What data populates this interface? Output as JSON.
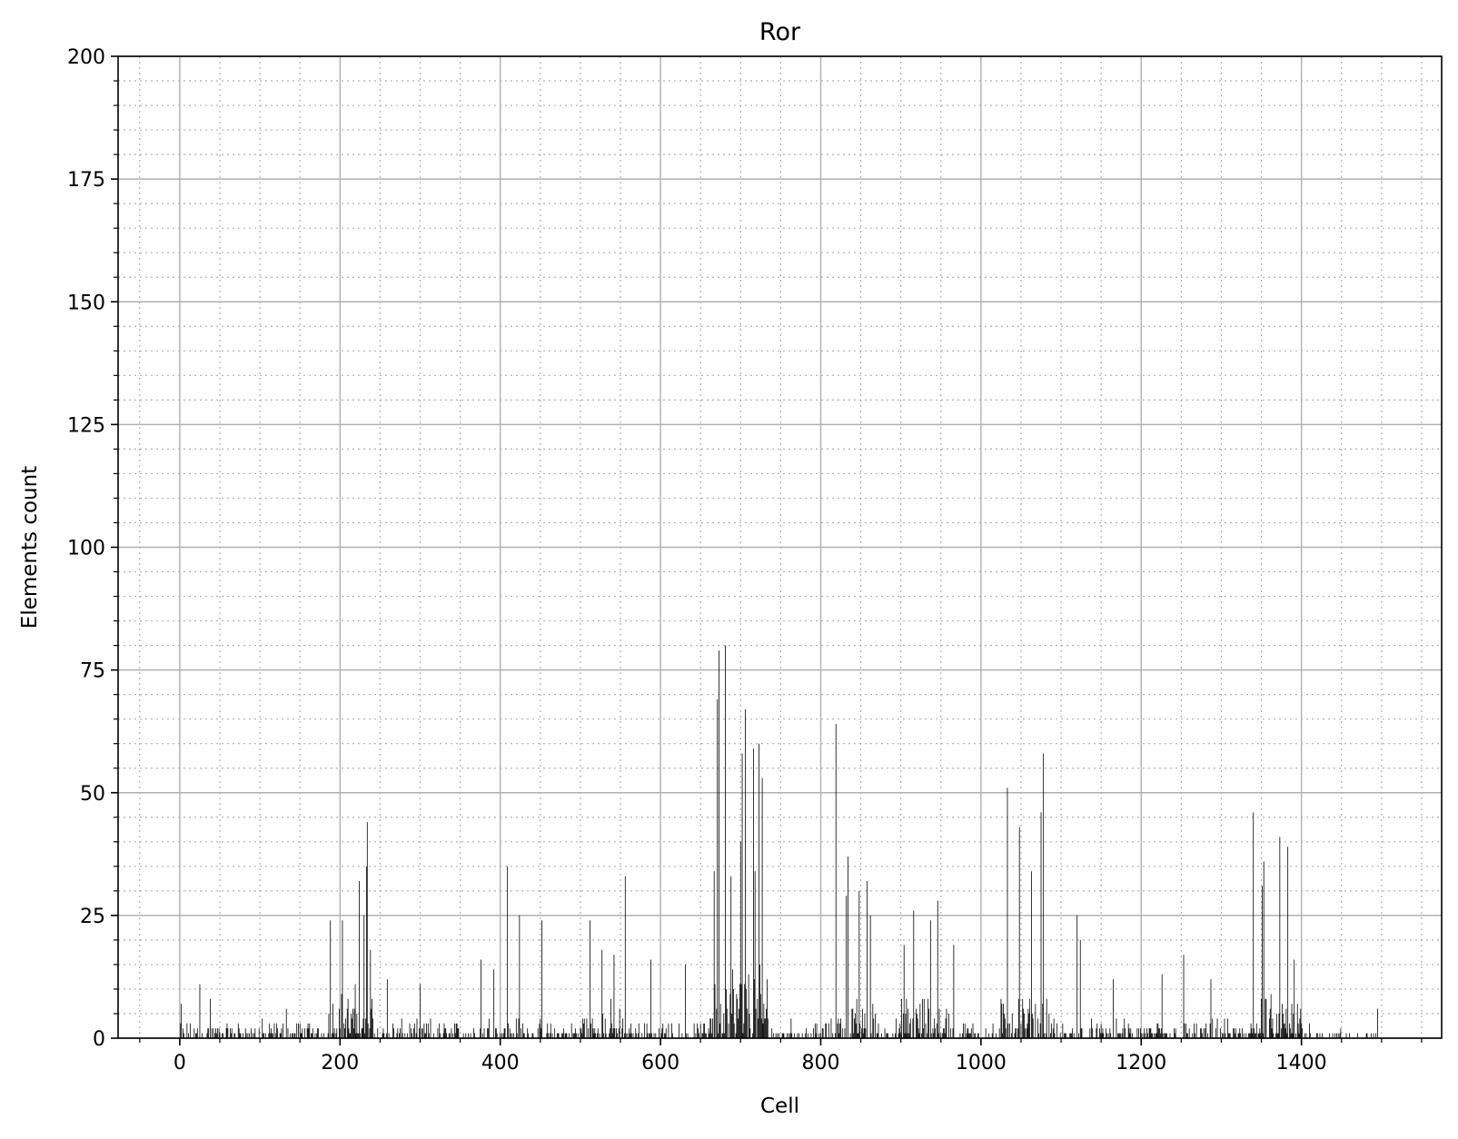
{
  "chart_data": {
    "type": "bar",
    "title": "Ror",
    "xlabel": "Cell",
    "ylabel": "Elements count",
    "xlim": [
      -77,
      1575
    ],
    "ylim": [
      0,
      200
    ],
    "xticks": [
      0,
      200,
      400,
      600,
      800,
      1000,
      1200,
      1400
    ],
    "xtick_labels": [
      "0",
      "200",
      "400",
      "600",
      "800",
      "1000",
      "1200",
      "1400"
    ],
    "yticks": [
      0,
      25,
      50,
      75,
      100,
      125,
      150,
      175,
      200
    ],
    "ytick_labels": [
      "0",
      "25",
      "50",
      "75",
      "100",
      "125",
      "150",
      "175",
      "200"
    ],
    "x_minor_step": 50,
    "y_minor_step": 5,
    "grid": "major solid, minor dotted",
    "bar_color": "#000000",
    "x_range": [
      0,
      1499
    ],
    "note_values": "One bar per cell (0–1499). Visible peak values read off the axes; between peaks the bars form dense low noise of about 0–12.",
    "peaks": [
      {
        "x": 2,
        "y": 7
      },
      {
        "x": 25,
        "y": 11
      },
      {
        "x": 38,
        "y": 8
      },
      {
        "x": 133,
        "y": 6
      },
      {
        "x": 188,
        "y": 24
      },
      {
        "x": 203,
        "y": 24
      },
      {
        "x": 224,
        "y": 32
      },
      {
        "x": 230,
        "y": 25
      },
      {
        "x": 233,
        "y": 35
      },
      {
        "x": 234,
        "y": 44
      },
      {
        "x": 238,
        "y": 18
      },
      {
        "x": 259,
        "y": 12
      },
      {
        "x": 300,
        "y": 11
      },
      {
        "x": 376,
        "y": 16
      },
      {
        "x": 392,
        "y": 14
      },
      {
        "x": 409,
        "y": 35
      },
      {
        "x": 424,
        "y": 25
      },
      {
        "x": 452,
        "y": 24
      },
      {
        "x": 512,
        "y": 24
      },
      {
        "x": 527,
        "y": 18
      },
      {
        "x": 542,
        "y": 17
      },
      {
        "x": 556,
        "y": 33
      },
      {
        "x": 588,
        "y": 16
      },
      {
        "x": 631,
        "y": 15
      },
      {
        "x": 667,
        "y": 34
      },
      {
        "x": 671,
        "y": 69
      },
      {
        "x": 673,
        "y": 79
      },
      {
        "x": 681,
        "y": 80
      },
      {
        "x": 688,
        "y": 33
      },
      {
        "x": 700,
        "y": 40
      },
      {
        "x": 702,
        "y": 58
      },
      {
        "x": 706,
        "y": 67
      },
      {
        "x": 716,
        "y": 59
      },
      {
        "x": 718,
        "y": 34
      },
      {
        "x": 723,
        "y": 60
      },
      {
        "x": 727,
        "y": 53
      },
      {
        "x": 819,
        "y": 64
      },
      {
        "x": 834,
        "y": 37
      },
      {
        "x": 832,
        "y": 29
      },
      {
        "x": 848,
        "y": 30
      },
      {
        "x": 858,
        "y": 32
      },
      {
        "x": 862,
        "y": 25
      },
      {
        "x": 904,
        "y": 19
      },
      {
        "x": 916,
        "y": 26
      },
      {
        "x": 937,
        "y": 24
      },
      {
        "x": 946,
        "y": 28
      },
      {
        "x": 966,
        "y": 19
      },
      {
        "x": 1033,
        "y": 51
      },
      {
        "x": 1048,
        "y": 43
      },
      {
        "x": 1063,
        "y": 34
      },
      {
        "x": 1075,
        "y": 46
      },
      {
        "x": 1078,
        "y": 58
      },
      {
        "x": 1120,
        "y": 25
      },
      {
        "x": 1124,
        "y": 20
      },
      {
        "x": 1165,
        "y": 12
      },
      {
        "x": 1226,
        "y": 13
      },
      {
        "x": 1253,
        "y": 17
      },
      {
        "x": 1287,
        "y": 12
      },
      {
        "x": 1340,
        "y": 46
      },
      {
        "x": 1351,
        "y": 31
      },
      {
        "x": 1353,
        "y": 36
      },
      {
        "x": 1373,
        "y": 41
      },
      {
        "x": 1383,
        "y": 39
      },
      {
        "x": 1391,
        "y": 16
      },
      {
        "x": 1495,
        "y": 6
      }
    ]
  }
}
